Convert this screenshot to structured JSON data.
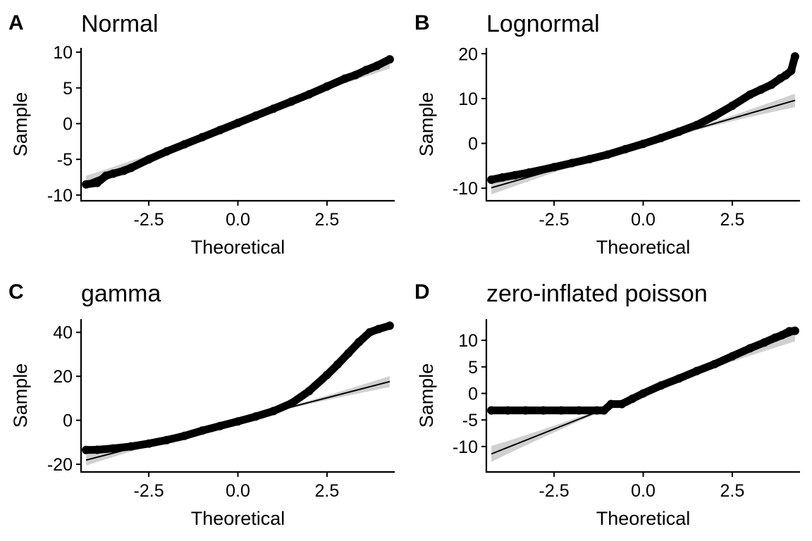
{
  "chart_data": [
    {
      "type": "scatter",
      "tag": "A",
      "title": "Normal",
      "xlabel": "Theoretical",
      "ylabel": "Sample",
      "xlim": [
        -4.4,
        4.4
      ],
      "ylim": [
        -10.8,
        10.6
      ],
      "xticks": [
        {
          "v": -2.5,
          "label": "-2.5"
        },
        {
          "v": 0,
          "label": "0.0"
        },
        {
          "v": 2.5,
          "label": "2.5"
        }
      ],
      "yticks": [
        {
          "v": -10,
          "label": "-10"
        },
        {
          "v": -5,
          "label": "-5"
        },
        {
          "v": 0,
          "label": "0"
        },
        {
          "v": 5,
          "label": "5"
        },
        {
          "v": 10,
          "label": "10"
        }
      ],
      "reference_line": {
        "x": [
          -4.26,
          4.26
        ],
        "y": [
          -8.2,
          8.6
        ],
        "band_halfwidth_at_ends": 0.9
      },
      "points": {
        "x": [
          -4.26,
          -3.95,
          -3.7,
          -3.5,
          -3.2,
          -3.0,
          -2.5,
          -2.0,
          -1.5,
          -1.0,
          -0.5,
          0.0,
          0.5,
          1.0,
          1.5,
          2.0,
          2.5,
          3.0,
          3.3,
          3.6,
          3.9,
          4.26
        ],
        "y": [
          -8.5,
          -8.3,
          -7.3,
          -7.0,
          -6.6,
          -6.2,
          -5.0,
          -3.9,
          -2.9,
          -1.9,
          -0.9,
          0.1,
          1.1,
          2.1,
          3.1,
          4.1,
          5.2,
          6.3,
          6.8,
          7.5,
          8.1,
          9.0
        ]
      }
    },
    {
      "type": "scatter",
      "tag": "B",
      "title": "Lognormal",
      "xlabel": "Theoretical",
      "ylabel": "Sample",
      "xlim": [
        -4.4,
        4.4
      ],
      "ylim": [
        -12.8,
        21.3
      ],
      "xticks": [
        {
          "v": -2.5,
          "label": "-2.5"
        },
        {
          "v": 0,
          "label": "0.0"
        },
        {
          "v": 2.5,
          "label": "2.5"
        }
      ],
      "yticks": [
        {
          "v": -10,
          "label": "-10"
        },
        {
          "v": 0,
          "label": "0"
        },
        {
          "v": 10,
          "label": "10"
        },
        {
          "v": 20,
          "label": "20"
        }
      ],
      "reference_line": {
        "x": [
          -4.26,
          4.26
        ],
        "y": [
          -9.9,
          9.6
        ],
        "band_halfwidth_at_ends": 1.5
      },
      "points": {
        "x": [
          -4.26,
          -3.95,
          -3.6,
          -3.2,
          -2.5,
          -2.0,
          -1.5,
          -1.0,
          -0.5,
          0.0,
          0.5,
          1.0,
          1.5,
          2.0,
          2.5,
          3.0,
          3.3,
          3.6,
          3.85,
          4.0,
          4.15,
          4.26
        ],
        "y": [
          -8.1,
          -7.6,
          -7.1,
          -6.5,
          -5.3,
          -4.4,
          -3.5,
          -2.5,
          -1.3,
          -0.1,
          1.2,
          2.6,
          4.1,
          6.1,
          8.4,
          10.9,
          12.0,
          13.1,
          14.5,
          15.2,
          16.2,
          19.4
        ]
      }
    },
    {
      "type": "scatter",
      "tag": "C",
      "title": "gamma",
      "xlabel": "Theoretical",
      "ylabel": "Sample",
      "xlim": [
        -4.4,
        4.4
      ],
      "ylim": [
        -23.5,
        46.0
      ],
      "xticks": [
        {
          "v": -2.5,
          "label": "-2.5"
        },
        {
          "v": 0,
          "label": "0.0"
        },
        {
          "v": 2.5,
          "label": "2.5"
        }
      ],
      "yticks": [
        {
          "v": -20,
          "label": "-20"
        },
        {
          "v": 0,
          "label": "0"
        },
        {
          "v": 20,
          "label": "20"
        },
        {
          "v": 40,
          "label": "40"
        }
      ],
      "reference_line": {
        "x": [
          -4.26,
          4.26
        ],
        "y": [
          -18.1,
          17.6
        ],
        "band_halfwidth_at_ends": 2.5
      },
      "points": {
        "x": [
          -4.26,
          -3.95,
          -3.5,
          -3.0,
          -2.5,
          -2.0,
          -1.5,
          -1.0,
          -0.5,
          0.0,
          0.5,
          1.0,
          1.5,
          2.0,
          2.5,
          2.8,
          3.1,
          3.4,
          3.7,
          3.95,
          4.26
        ],
        "y": [
          -13.5,
          -13.4,
          -12.8,
          -11.9,
          -10.6,
          -9.0,
          -7.1,
          -4.7,
          -2.6,
          -0.5,
          1.7,
          4.2,
          7.7,
          13.3,
          20.6,
          25.4,
          30.5,
          35.6,
          40.0,
          41.5,
          43.0
        ]
      }
    },
    {
      "type": "scatter",
      "tag": "D",
      "title": "zero-inflated poisson",
      "xlabel": "Theoretical",
      "ylabel": "Sample",
      "xlim": [
        -4.4,
        4.4
      ],
      "ylim": [
        -14.8,
        14.0
      ],
      "xticks": [
        {
          "v": -2.5,
          "label": "-2.5"
        },
        {
          "v": 0,
          "label": "0.0"
        },
        {
          "v": 2.5,
          "label": "2.5"
        }
      ],
      "yticks": [
        {
          "v": -10,
          "label": "-10"
        },
        {
          "v": -5,
          "label": "-5"
        },
        {
          "v": 0,
          "label": "0"
        },
        {
          "v": 5,
          "label": "5"
        },
        {
          "v": 10,
          "label": "10"
        }
      ],
      "reference_line": {
        "x": [
          -4.26,
          4.26
        ],
        "y": [
          -11.4,
          11.3
        ],
        "band_halfwidth_at_ends": 1.5
      },
      "points": {
        "x": [
          -4.26,
          -3.8,
          -3.3,
          -2.8,
          -2.3,
          -1.8,
          -1.3,
          -1.1,
          -0.9,
          -0.6,
          -0.3,
          0.0,
          0.5,
          1.0,
          1.5,
          2.0,
          2.5,
          3.0,
          3.4,
          3.7,
          3.9,
          4.1,
          4.26
        ],
        "y": [
          -3.2,
          -3.2,
          -3.2,
          -3.2,
          -3.2,
          -3.2,
          -3.2,
          -3.2,
          -2.0,
          -2.0,
          -1.0,
          0.0,
          1.5,
          2.8,
          4.2,
          5.5,
          7.0,
          8.5,
          9.6,
          10.5,
          11.0,
          11.7,
          11.8
        ]
      }
    }
  ]
}
